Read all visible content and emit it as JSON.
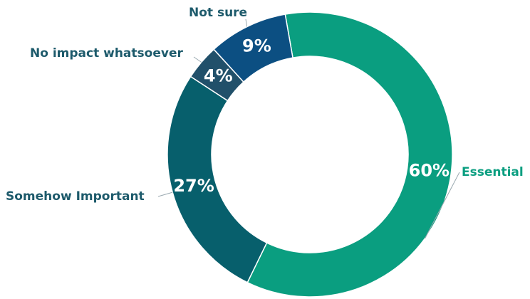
{
  "chart_data": {
    "type": "donut",
    "categories": [
      "Essential",
      "Somehow Important",
      "No impact whatsoever",
      "Not sure"
    ],
    "values": [
      60,
      27,
      4,
      9
    ],
    "value_labels": [
      "60%",
      "27%",
      "4%",
      "9%"
    ],
    "colors": [
      "#0a9e80",
      "#075f6c",
      "#21506a",
      "#0c4f82"
    ]
  }
}
